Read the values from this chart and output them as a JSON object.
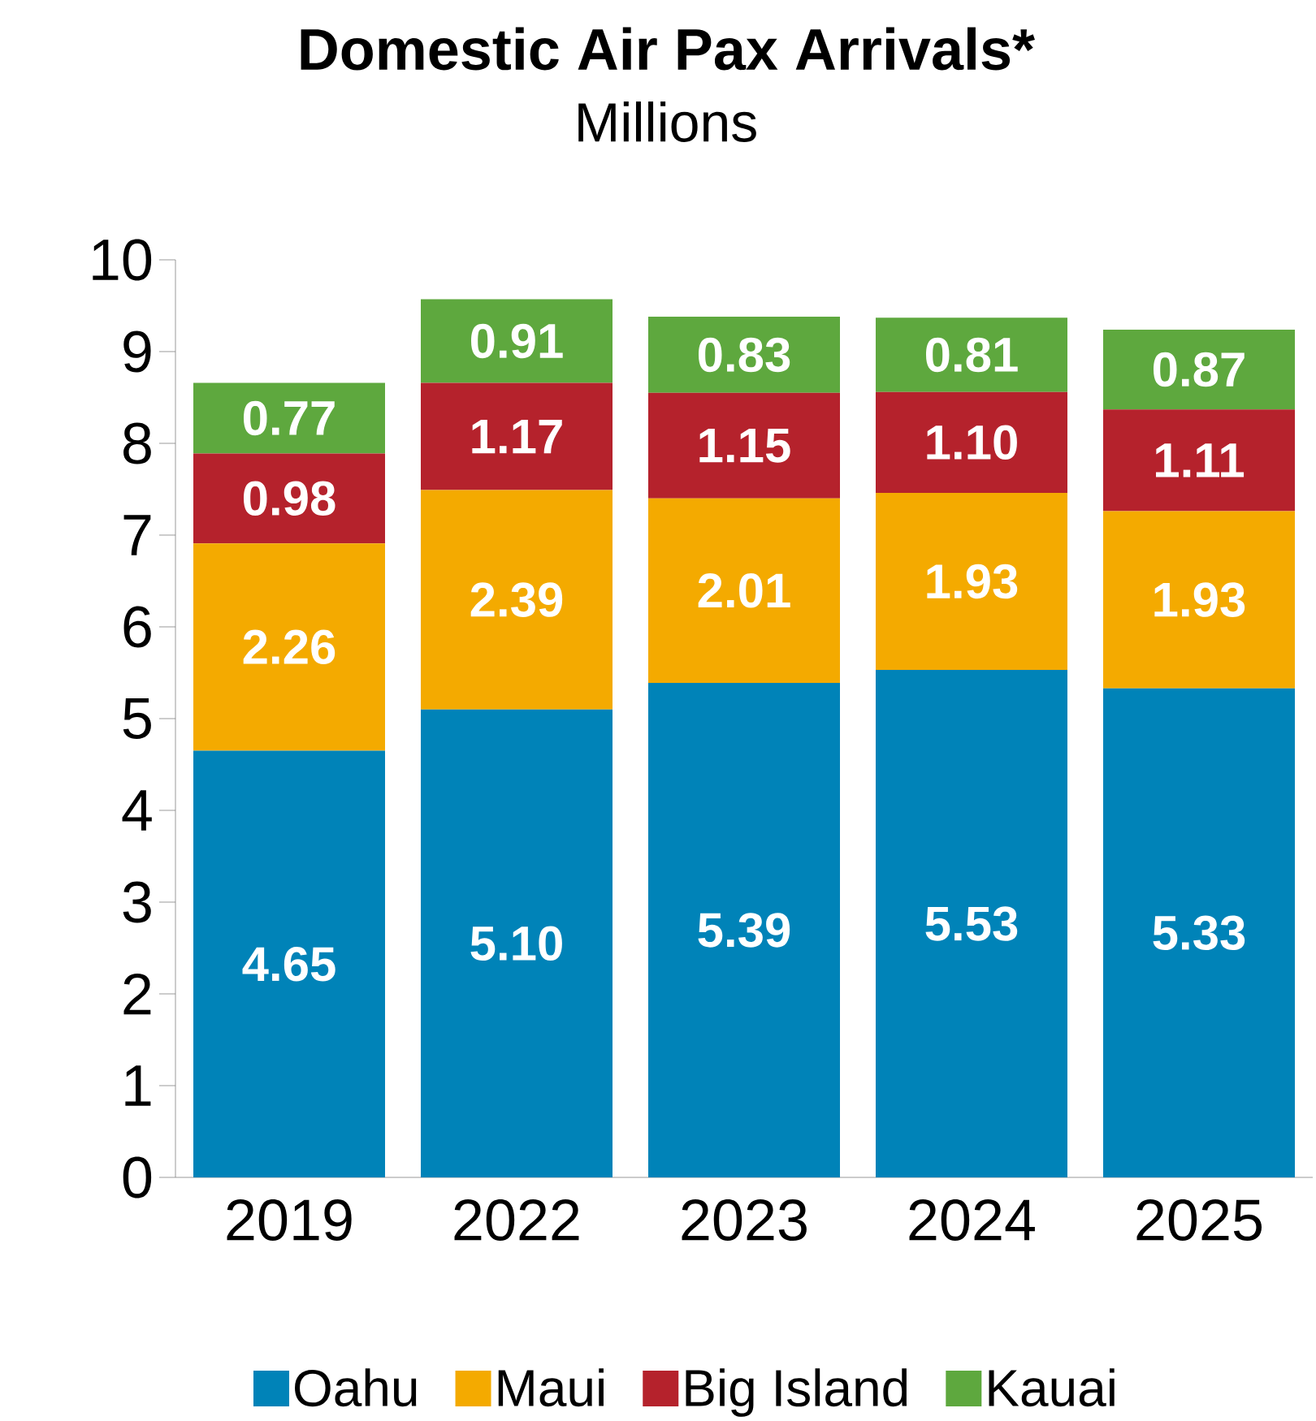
{
  "chart_data": {
    "type": "bar",
    "stacked": true,
    "title": "Domestic Air Pax Arrivals*",
    "subtitle": "Millions",
    "categories": [
      "2019",
      "2022",
      "2023",
      "2024",
      "2025"
    ],
    "series": [
      {
        "name": "Oahu",
        "color": "#0083b8",
        "values": [
          4.65,
          5.1,
          5.39,
          5.53,
          5.33
        ],
        "value_labels": [
          "4.65",
          "5.10",
          "5.39",
          "5.53",
          "5.33"
        ]
      },
      {
        "name": "Maui",
        "color": "#f4aa00",
        "values": [
          2.26,
          2.39,
          2.01,
          1.93,
          1.93
        ],
        "value_labels": [
          "2.26",
          "2.39",
          "2.01",
          "1.93",
          "1.93"
        ]
      },
      {
        "name": "Big Island",
        "color": "#b5222c",
        "values": [
          0.98,
          1.17,
          1.15,
          1.1,
          1.11
        ],
        "value_labels": [
          "0.98",
          "1.17",
          "1.15",
          "1.10",
          "1.11"
        ]
      },
      {
        "name": "Kauai",
        "color": "#5ea83e",
        "values": [
          0.77,
          0.91,
          0.83,
          0.81,
          0.87
        ],
        "value_labels": [
          "0.77",
          "0.91",
          "0.83",
          "0.81",
          "0.87"
        ]
      }
    ],
    "ylim": [
      0,
      10
    ],
    "yticks": [
      0,
      1,
      2,
      3,
      4,
      5,
      6,
      7,
      8,
      9,
      10
    ],
    "grid": false,
    "legend": "bottom"
  }
}
